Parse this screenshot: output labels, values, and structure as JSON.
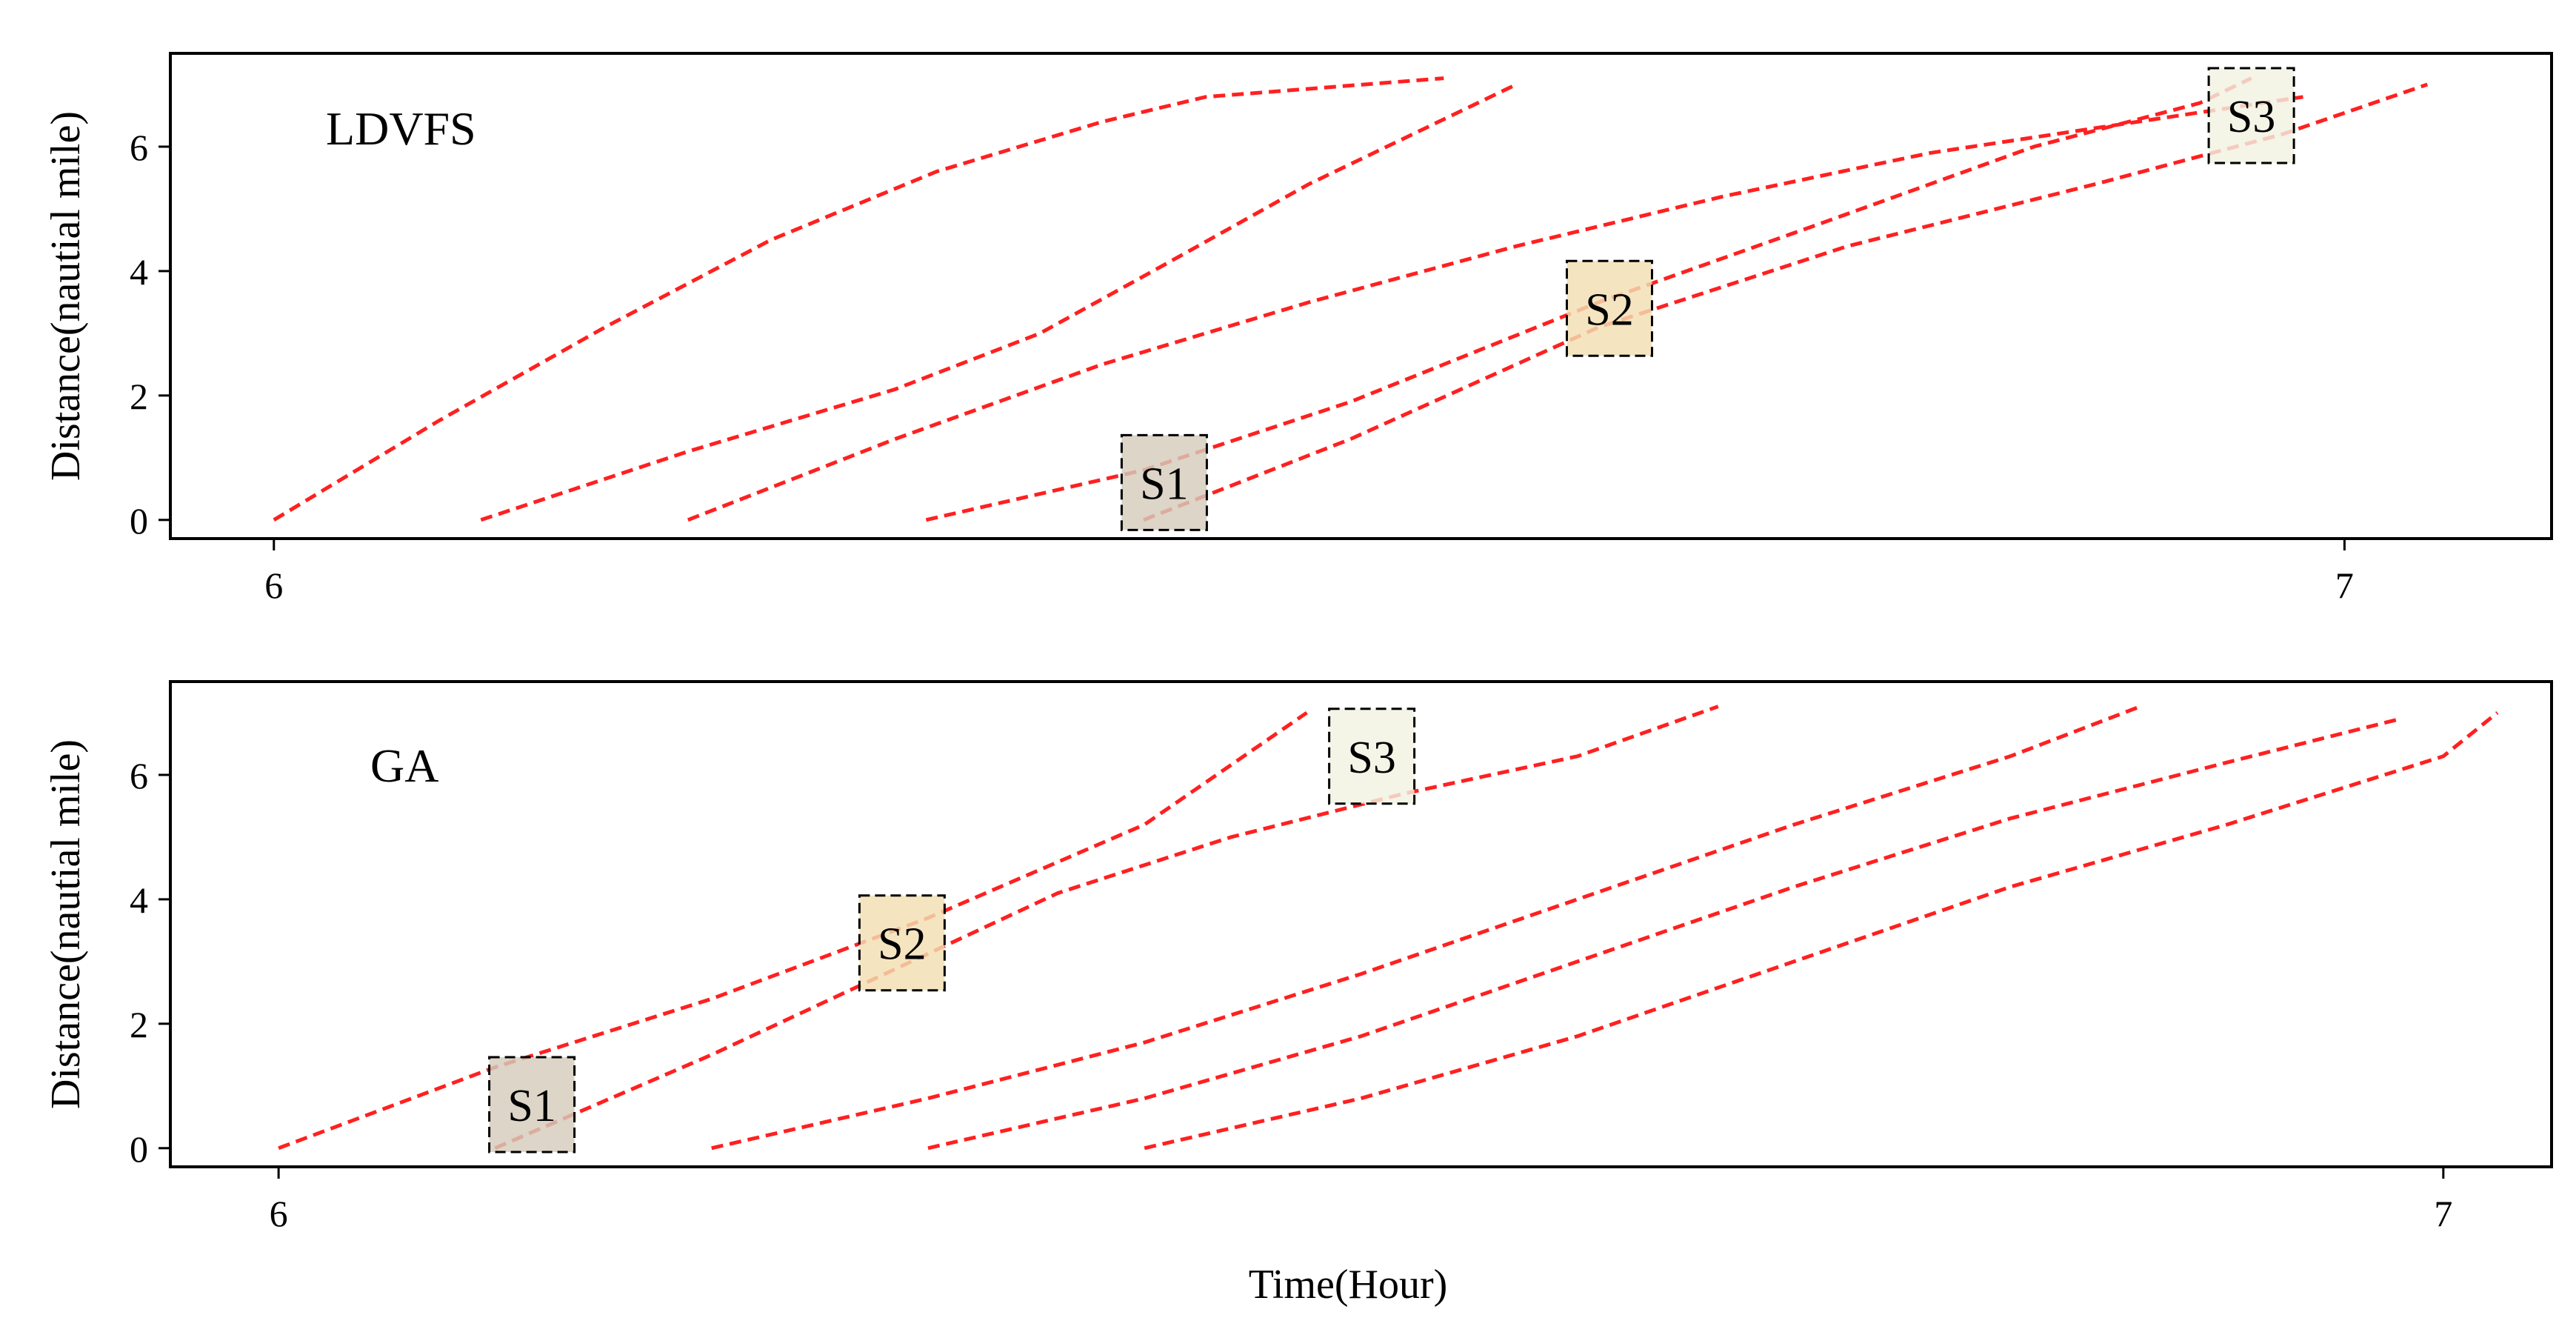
{
  "figure": {
    "xlabel": "Time(Hour)"
  },
  "chart_data": [
    {
      "type": "line",
      "panel_label": "LDVFS",
      "xlabel": "",
      "ylabel": "Distance(nautial mile)",
      "xlim": [
        5.95,
        7.1
      ],
      "ylim": [
        -0.3,
        7.5
      ],
      "xticks": [
        6,
        7
      ],
      "yticks": [
        0,
        2,
        4,
        6
      ],
      "grid": false,
      "line_color": "#ff2020",
      "line_style": "dashed",
      "series": [
        {
          "points": [
            [
              6.0,
              0.0
            ],
            [
              6.08,
              1.6
            ],
            [
              6.16,
              3.1
            ],
            [
              6.24,
              4.5
            ],
            [
              6.32,
              5.6
            ],
            [
              6.4,
              6.4
            ],
            [
              6.45,
              6.8
            ],
            [
              6.565,
              7.1
            ]
          ]
        },
        {
          "points": [
            [
              6.1,
              0.0
            ],
            [
              6.2,
              1.1
            ],
            [
              6.3,
              2.1
            ],
            [
              6.37,
              3.0
            ],
            [
              6.43,
              4.1
            ],
            [
              6.5,
              5.4
            ],
            [
              6.6,
              7.0
            ]
          ]
        },
        {
          "points": [
            [
              6.2,
              0.0
            ],
            [
              6.3,
              1.3
            ],
            [
              6.4,
              2.5
            ],
            [
              6.5,
              3.5
            ],
            [
              6.6,
              4.4
            ],
            [
              6.7,
              5.2
            ],
            [
              6.8,
              5.9
            ],
            [
              6.9,
              6.4
            ],
            [
              6.98,
              6.8
            ]
          ]
        },
        {
          "points": [
            [
              6.315,
              0.0
            ],
            [
              6.42,
              0.8
            ],
            [
              6.52,
              1.9
            ],
            [
              6.64,
              3.5
            ],
            [
              6.75,
              4.8
            ],
            [
              6.85,
              6.0
            ],
            [
              6.93,
              6.7
            ],
            [
              6.955,
              7.1
            ]
          ]
        },
        {
          "points": [
            [
              6.42,
              0.0
            ],
            [
              6.52,
              1.3
            ],
            [
              6.64,
              3.1
            ],
            [
              6.76,
              4.4
            ],
            [
              6.88,
              5.4
            ],
            [
              6.97,
              6.2
            ],
            [
              7.04,
              7.0
            ]
          ]
        }
      ],
      "stations": [
        {
          "label": "S1",
          "x": 6.43,
          "y": 0.6,
          "fill": "#d4ccbc"
        },
        {
          "label": "S2",
          "x": 6.645,
          "y": 3.4,
          "fill": "#f1dfb2"
        },
        {
          "label": "S3",
          "x": 6.955,
          "y": 6.5,
          "fill": "#f2f2e2"
        }
      ]
    },
    {
      "type": "line",
      "panel_label": "GA",
      "xlabel": "",
      "ylabel": "Distance(nautial mile)",
      "xlim": [
        5.95,
        7.05
      ],
      "ylim": [
        -0.3,
        7.5
      ],
      "xticks": [
        6,
        7
      ],
      "yticks": [
        0,
        2,
        4,
        6
      ],
      "grid": false,
      "line_color": "#ff2020",
      "line_style": "dashed",
      "series": [
        {
          "points": [
            [
              6.0,
              0.0
            ],
            [
              6.1,
              1.3
            ],
            [
              6.2,
              2.4
            ],
            [
              6.3,
              3.7
            ],
            [
              6.4,
              5.2
            ],
            [
              6.475,
              7.0
            ]
          ]
        },
        {
          "points": [
            [
              6.1,
              0.0
            ],
            [
              6.2,
              1.5
            ],
            [
              6.28,
              2.8
            ],
            [
              6.36,
              4.1
            ],
            [
              6.44,
              5.0
            ],
            [
              6.52,
              5.7
            ],
            [
              6.6,
              6.3
            ],
            [
              6.665,
              7.1
            ]
          ]
        },
        {
          "points": [
            [
              6.2,
              0.0
            ],
            [
              6.3,
              0.8
            ],
            [
              6.4,
              1.7
            ],
            [
              6.5,
              2.8
            ],
            [
              6.6,
              4.0
            ],
            [
              6.7,
              5.2
            ],
            [
              6.8,
              6.3
            ],
            [
              6.86,
              7.1
            ]
          ]
        },
        {
          "points": [
            [
              6.3,
              0.0
            ],
            [
              6.4,
              0.8
            ],
            [
              6.5,
              1.8
            ],
            [
              6.6,
              3.0
            ],
            [
              6.7,
              4.2
            ],
            [
              6.8,
              5.3
            ],
            [
              6.9,
              6.2
            ],
            [
              6.98,
              6.9
            ]
          ]
        },
        {
          "points": [
            [
              6.4,
              0.0
            ],
            [
              6.5,
              0.8
            ],
            [
              6.6,
              1.8
            ],
            [
              6.7,
              3.0
            ],
            [
              6.8,
              4.2
            ],
            [
              6.9,
              5.2
            ],
            [
              7.0,
              6.3
            ],
            [
              7.025,
              7.0
            ]
          ]
        }
      ],
      "stations": [
        {
          "label": "S1",
          "x": 6.117,
          "y": 0.7,
          "fill": "#d4ccbc"
        },
        {
          "label": "S2",
          "x": 6.288,
          "y": 3.3,
          "fill": "#f1dfb2"
        },
        {
          "label": "S3",
          "x": 6.505,
          "y": 6.3,
          "fill": "#f2f2e2"
        }
      ]
    }
  ]
}
